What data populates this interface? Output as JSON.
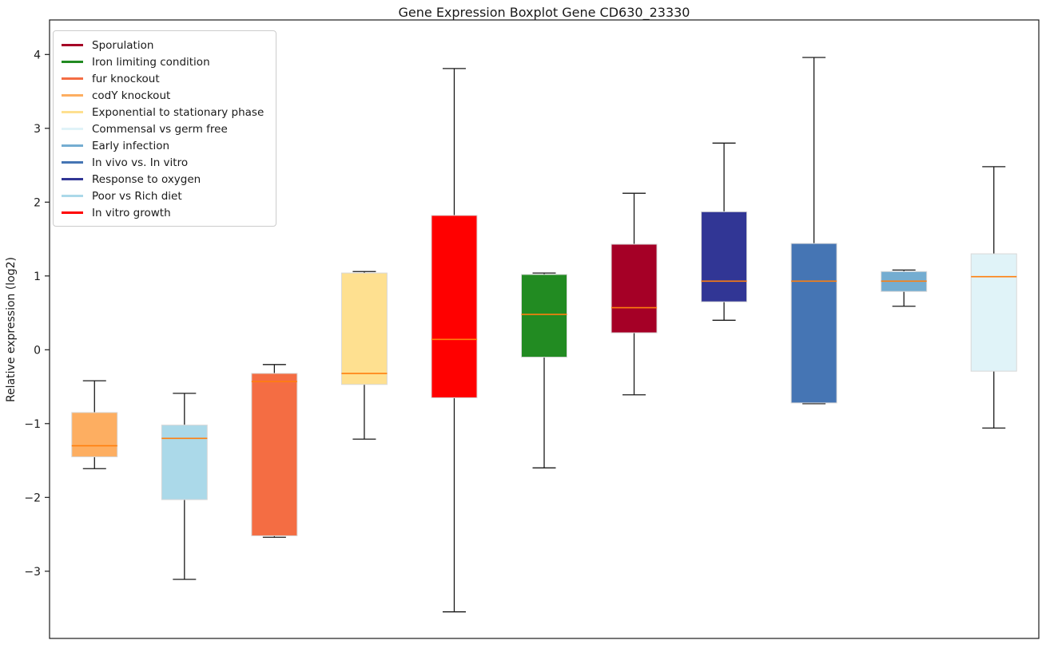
{
  "figure": {
    "title": "Gene Expression Boxplot Gene CD630_23330",
    "ylabel": "Relative expression (log2)"
  },
  "chart_data": {
    "type": "boxplot",
    "title": "Gene Expression Boxplot Gene CD630_23330",
    "xlabel": "",
    "ylabel": "Relative expression (log2)",
    "yticks": [
      -3,
      -2,
      -1,
      0,
      1,
      2,
      3,
      4
    ],
    "ylim": [
      -3.91,
      4.47
    ],
    "grid": false,
    "legend_position": "upper-left",
    "median_color": "#ff7f0e",
    "box_edge_color": "#d8d8d8",
    "whisker_color": "#1a1a1a",
    "boxes": [
      {
        "name": "codY knockout",
        "color": "#FDAE61",
        "whislo": -1.61,
        "q1": -1.45,
        "med": -1.3,
        "q3": -0.85,
        "whishi": -0.42
      },
      {
        "name": "Poor vs Rich diet",
        "color": "#ABD9E9",
        "whislo": -3.11,
        "q1": -2.03,
        "med": -1.2,
        "q3": -1.02,
        "whishi": -0.59
      },
      {
        "name": "fur knockout",
        "color": "#F46D43",
        "whislo": -2.54,
        "q1": -2.52,
        "med": -0.43,
        "q3": -0.32,
        "whishi": -0.2
      },
      {
        "name": "Exponential to stationary phase",
        "color": "#FEE090",
        "whislo": -1.21,
        "q1": -0.47,
        "med": -0.32,
        "q3": 1.04,
        "whishi": 1.06
      },
      {
        "name": "In vitro growth",
        "color": "#FF0000",
        "whislo": -3.55,
        "q1": -0.65,
        "med": 0.14,
        "q3": 1.82,
        "whishi": 3.81
      },
      {
        "name": "Iron limiting condition",
        "color": "#228B22",
        "whislo": -1.6,
        "q1": -0.1,
        "med": 0.48,
        "q3": 1.02,
        "whishi": 1.04
      },
      {
        "name": "Sporulation",
        "color": "#A50026",
        "whislo": -0.61,
        "q1": 0.23,
        "med": 0.57,
        "q3": 1.43,
        "whishi": 2.12
      },
      {
        "name": "Response to oxygen",
        "color": "#313695",
        "whislo": 0.4,
        "q1": 0.65,
        "med": 0.93,
        "q3": 1.87,
        "whishi": 2.8
      },
      {
        "name": "In vivo vs. In vitro",
        "color": "#4575B4",
        "whislo": -0.73,
        "q1": -0.72,
        "med": 0.93,
        "q3": 1.44,
        "whishi": 3.96
      },
      {
        "name": "Early infection",
        "color": "#74ADD1",
        "whislo": 0.59,
        "q1": 0.79,
        "med": 0.93,
        "q3": 1.06,
        "whishi": 1.08
      },
      {
        "name": "Commensal vs germ free",
        "color": "#E0F3F8",
        "whislo": -1.06,
        "q1": -0.29,
        "med": 0.99,
        "q3": 1.3,
        "whishi": 2.48
      }
    ],
    "legend": [
      {
        "label": "Sporulation",
        "color": "#A50026"
      },
      {
        "label": "Iron limiting condition",
        "color": "#228B22"
      },
      {
        "label": "fur knockout",
        "color": "#F46D43"
      },
      {
        "label": "codY knockout",
        "color": "#FDAE61"
      },
      {
        "label": "Exponential to stationary phase",
        "color": "#FEE090"
      },
      {
        "label": "Commensal vs germ free",
        "color": "#E0F3F8"
      },
      {
        "label": "Early infection",
        "color": "#74ADD1"
      },
      {
        "label": "In vivo vs. In vitro",
        "color": "#4575B4"
      },
      {
        "label": "Response to oxygen",
        "color": "#313695"
      },
      {
        "label": "Poor vs Rich diet",
        "color": "#ABD9E9"
      },
      {
        "label": "In vitro growth",
        "color": "#FF0000"
      }
    ]
  }
}
